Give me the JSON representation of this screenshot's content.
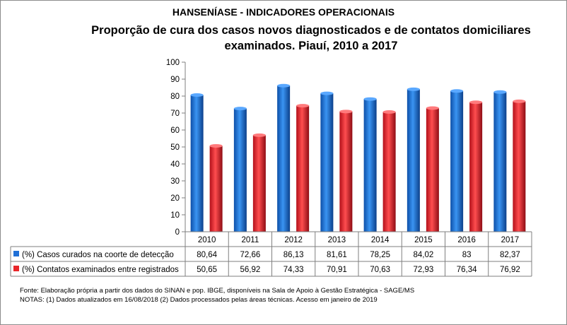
{
  "chart_data": {
    "type": "bar",
    "supertitle": "HANSENÍASE - INDICADORES OPERACIONAIS",
    "title": "Proporção de cura dos casos novos diagnosticados e de contatos domiciliares examinados. Piauí, 2010 a 2017",
    "categories": [
      "2010",
      "2011",
      "2012",
      "2013",
      "2014",
      "2015",
      "2016",
      "2017"
    ],
    "ylim": [
      0,
      100
    ],
    "yticks": [
      "0",
      "10",
      "20",
      "30",
      "40",
      "50",
      "60",
      "70",
      "80",
      "90",
      "100"
    ],
    "grid": false,
    "legend": "data-table",
    "series": [
      {
        "name": "(%) Casos curados na coorte de detecção",
        "color": "#1f6fd6",
        "values": [
          80.64,
          72.66,
          86.13,
          81.61,
          78.25,
          84.02,
          83,
          82.37
        ],
        "labels": [
          "80,64",
          "72,66",
          "86,13",
          "81,61",
          "78,25",
          "84,02",
          "83",
          "82,37"
        ]
      },
      {
        "name": "(%) Contatos examinados entre registrados",
        "color": "#e8262a",
        "values": [
          50.65,
          56.92,
          74.33,
          70.91,
          70.63,
          72.93,
          76.34,
          76.92
        ],
        "labels": [
          "50,65",
          "56,92",
          "74,33",
          "70,91",
          "70,63",
          "72,93",
          "76,34",
          "76,92"
        ]
      }
    ]
  },
  "footer": {
    "source": "Fonte: Elaboração própria a partir dos dados do SINAN e pop. IBGE, disponíveis na Sala de Apoio à Gestão Estratégica - SAGE/MS",
    "notes": "NOTAS: (1) Dados atualizados em 16/08/2018 (2) Dados processados pelas áreas técnicas. Acesso em janeiro de 2019"
  }
}
